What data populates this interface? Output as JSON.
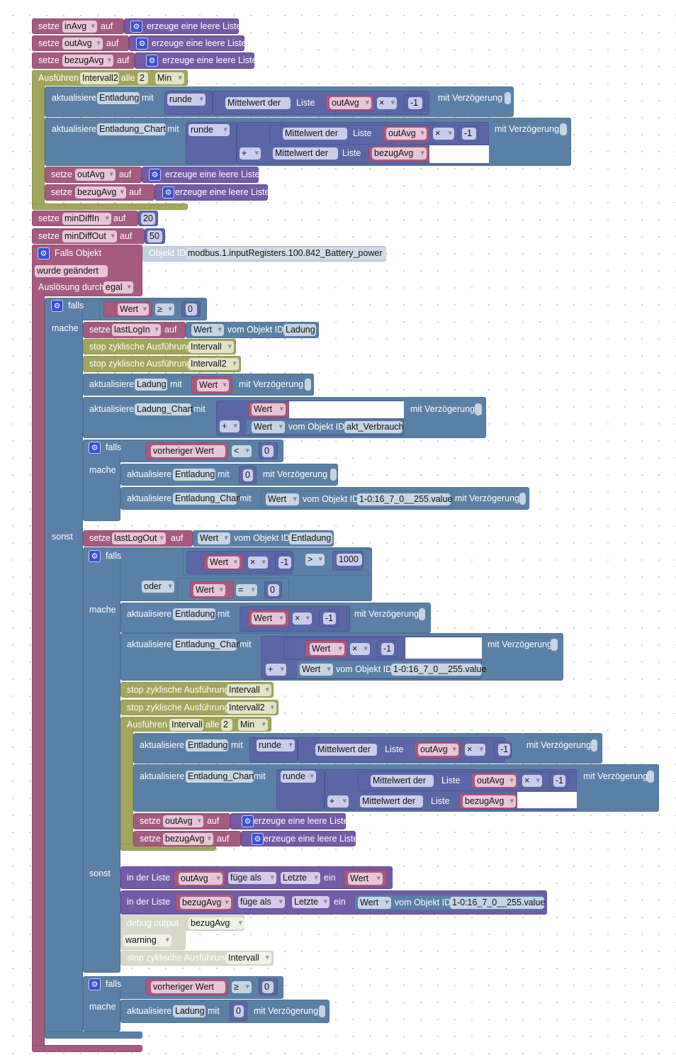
{
  "L": {
    "setze": "setze",
    "auf": "auf",
    "erzeuge": "erzeuge eine leere Liste",
    "ausfuehren": "Ausführen",
    "alle": "alle",
    "aktualisiere": "aktualisiere",
    "mit": "mit",
    "runde": "runde",
    "mittelwert": "Mittelwert der",
    "liste": "Liste",
    "verz": "mit Verzögerung",
    "plus": "+",
    "falls": "falls",
    "mache": "mache",
    "sonst": "sonst",
    "wert": "Wert",
    "vom": "vom Objekt ID",
    "stop": "stop zyklische Ausführung",
    "in_liste": "in der Liste",
    "fuege": "füge als",
    "letzte": "Letzte",
    "ein": "ein",
    "vorheriger": "vorheriger Wert"
  },
  "init": [
    {
      "var": "inAvg"
    },
    {
      "var": "outAvg"
    },
    {
      "var": "bezugAvg"
    }
  ],
  "timer1": {
    "name": "Intervall2",
    "value": "2",
    "unit": "Min",
    "u1": {
      "target": "Entladung",
      "var": "outAvg",
      "op": "×",
      "num": "-1"
    },
    "u2": {
      "target": "Entladung_Chart",
      "var": "outAvg",
      "op": "×",
      "num": "-1",
      "var2": "bezugAvg"
    },
    "reset": [
      "outAvg",
      "bezugAvg"
    ]
  },
  "vars": [
    {
      "var": "minDiffIn",
      "value": "20"
    },
    {
      "var": "minDiffOut",
      "value": "50"
    }
  ],
  "trigger": {
    "title": "Falls Objekt",
    "id_label": "Objekt ID",
    "id": "modbus.1.inputRegisters.100.842_Battery_power",
    "event": "wurde geändert",
    "by_label": "Auslösung durch",
    "by_value": "egal"
  },
  "if1": {
    "cond": {
      "left": "Wert",
      "op": "≥",
      "right": "0"
    },
    "then": {
      "set_var": "lastLogIn",
      "set_obj": "Ladung",
      "stop1": "Intervall",
      "stop2": "Intervall2",
      "upd1_target": "Ladung",
      "upd2_target": "Ladung_Chart",
      "upd2_obj": "akt_Verbrauch",
      "if2": {
        "op": "<",
        "right": "0",
        "upd1_target": "Entladung",
        "upd1_value": "0",
        "upd2_target": "Entladung_Chart",
        "upd2_obj": "1-0:16_7_0__255.value"
      }
    },
    "else": {
      "set_var": "lastLogOut",
      "set_obj": "Entladung",
      "if3": {
        "logic": "oder",
        "c1_op": "×",
        "c1_num": "-1",
        "c1_cmp": ">",
        "c1_right": "1000",
        "c2_cmp": "=",
        "c2_right": "0",
        "upd1_target": "Entladung",
        "upd1_op": "×",
        "upd1_num": "-1",
        "upd2_target": "Entladung_Chart",
        "upd2_op": "×",
        "upd2_num": "-1",
        "upd2_obj": "1-0:16_7_0__255.value",
        "stop1": "Intervall",
        "stop2": "Intervall2",
        "timer2": {
          "name": "Intervall",
          "value": "2",
          "unit": "Min",
          "u1": {
            "target": "Entladung",
            "var": "outAvg",
            "op": "×",
            "num": "-1"
          },
          "u2": {
            "target": "Entladung_Chart",
            "var": "outAvg",
            "op": "×",
            "num": "-1",
            "var2": "bezugAvg"
          },
          "reset": [
            "outAvg",
            "bezugAvg"
          ]
        },
        "else": {
          "add1_list": "outAvg",
          "add2_list": "bezugAvg",
          "add2_obj": "1-0:16_7_0__255.value",
          "debug": {
            "label": "debug output",
            "var": "bezugAvg",
            "level": "warning",
            "stop": "Intervall"
          }
        }
      }
    },
    "if4": {
      "op": "≥",
      "right": "0",
      "target": "Ladung",
      "value": "0"
    }
  }
}
